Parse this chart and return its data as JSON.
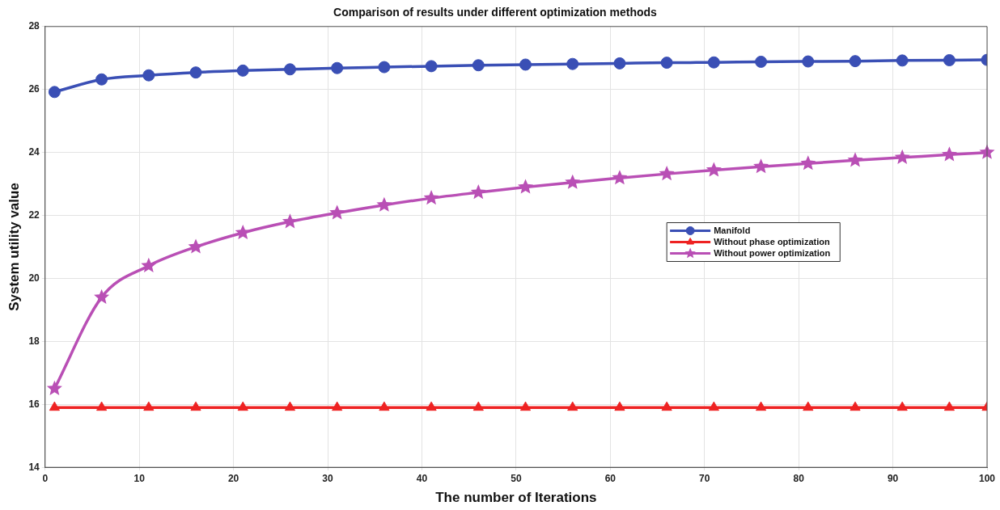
{
  "chart_data": {
    "type": "line",
    "title": "Comparison of results under different optimization methods",
    "xlabel": "The number of Iterations",
    "ylabel": "System utility value",
    "x": [
      1,
      6,
      11,
      16,
      21,
      26,
      31,
      36,
      41,
      46,
      51,
      56,
      61,
      66,
      71,
      76,
      81,
      86,
      91,
      96,
      100
    ],
    "series": [
      {
        "name": "Manifold",
        "color": "#3a4fb5",
        "marker": "circle",
        "values": [
          25.92,
          26.32,
          26.45,
          26.54,
          26.6,
          26.64,
          26.68,
          26.71,
          26.74,
          26.77,
          26.79,
          26.81,
          26.83,
          26.85,
          26.86,
          26.88,
          26.89,
          26.9,
          26.92,
          26.93,
          26.94
        ]
      },
      {
        "name": "Without phase optimization",
        "color": "#ee2222",
        "marker": "triangle",
        "values": [
          15.9,
          15.9,
          15.9,
          15.9,
          15.9,
          15.9,
          15.9,
          15.9,
          15.9,
          15.9,
          15.9,
          15.9,
          15.9,
          15.9,
          15.9,
          15.9,
          15.9,
          15.9,
          15.9,
          15.9,
          15.9
        ]
      },
      {
        "name": "Without power optimization",
        "color": "#b94fb5",
        "marker": "star",
        "values": [
          16.5,
          19.4,
          20.4,
          21.0,
          21.45,
          21.8,
          22.08,
          22.33,
          22.55,
          22.73,
          22.9,
          23.05,
          23.19,
          23.32,
          23.44,
          23.55,
          23.65,
          23.75,
          23.84,
          23.93,
          24.0
        ]
      }
    ],
    "xlim": [
      0,
      100
    ],
    "xticks": [
      0,
      10,
      20,
      30,
      40,
      50,
      60,
      70,
      80,
      90,
      100
    ],
    "ylim": [
      14,
      28
    ],
    "yticks": [
      14,
      16,
      18,
      20,
      22,
      24,
      26,
      28
    ],
    "grid": true,
    "legend": "right",
    "line_style": "solid"
  }
}
